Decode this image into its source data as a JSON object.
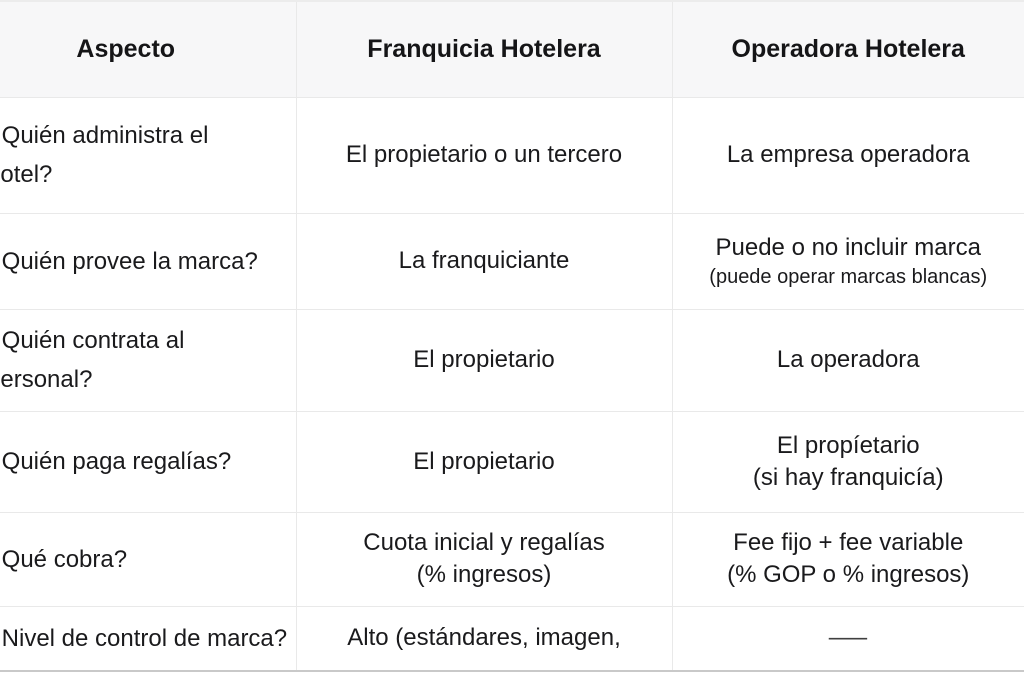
{
  "header": {
    "columns": [
      "Aspecto",
      "Franquicia Hotelera",
      "Operadora Hotelera"
    ]
  },
  "rows": [
    {
      "aspect": "¿Quién administra el\nhotel?",
      "franquicia": "El propietario o un tercero",
      "operadora": "La empresa operadora"
    },
    {
      "aspect": "¿Quién provee la marca?",
      "franquicia": "La franquiciante",
      "operadora": "Puede o no incluir marca",
      "operadora_note": "(puede operar marcas blancas)"
    },
    {
      "aspect": "¿Quién contrata al\npersonal?",
      "franquicia": "El propietario",
      "operadora": "La operadora"
    },
    {
      "aspect": "¿Quién paga regalías?",
      "franquicia": "El propietario",
      "operadora": "El propíetario\n(si hay franquicía)"
    },
    {
      "aspect": "¿Qué cobra?",
      "franquicia": "Cuota inicial y regalías\n(% ingresos)",
      "operadora": "Fee fijo + fee variable\n(% GOP o % ingresos)"
    },
    {
      "aspect": "¿Nivel de control de marca?",
      "franquicia": "Alto (estándares, imagen,",
      "operadora": "—"
    }
  ],
  "colors": {
    "header_bg": "#f7f7f8",
    "body_bg": "#ffffff",
    "grid_border": "#e9e9e9",
    "bottom_border": "#c9c9c9",
    "text": "#1a1a1c"
  }
}
